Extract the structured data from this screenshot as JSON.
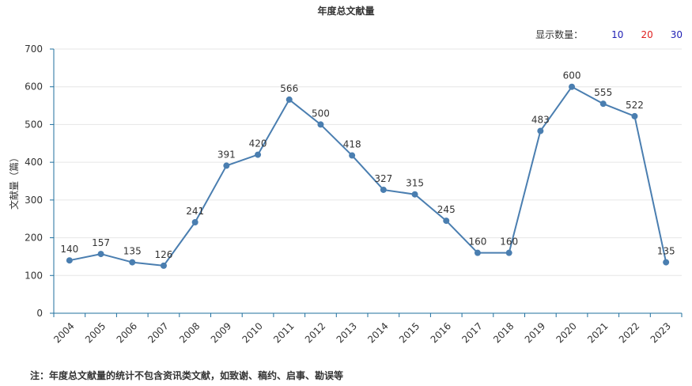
{
  "title": "年度总文献量",
  "display_count": {
    "label": "显示数量：",
    "options": [
      {
        "label": "10",
        "color": "#1f1fb4"
      },
      {
        "label": "20",
        "color": "#e02020"
      },
      {
        "label": "30",
        "color": "#1f1fb4"
      }
    ]
  },
  "note": "注：年度总文献量的统计不包含资讯类文献，如致谢、稿约、启事、勘误等",
  "colors": {
    "line": "#4a7eb0",
    "point": "#4a7eb0",
    "axis": "#1f6f9e",
    "grid": "#e6e6e6"
  },
  "chart_data": {
    "type": "line",
    "title": "年度总文献量",
    "xlabel": "",
    "ylabel": "文献量（篇）",
    "ylim": [
      0,
      700
    ],
    "yticks": [
      0,
      100,
      200,
      300,
      400,
      500,
      600,
      700
    ],
    "grid": true,
    "categories": [
      "2004",
      "2005",
      "2006",
      "2007",
      "2008",
      "2009",
      "2010",
      "2011",
      "2012",
      "2013",
      "2014",
      "2015",
      "2016",
      "2017",
      "2018",
      "2019",
      "2020",
      "2021",
      "2022",
      "2023"
    ],
    "series": [
      {
        "values": [
          140,
          157,
          135,
          126,
          241,
          391,
          420,
          566,
          500,
          418,
          327,
          315,
          245,
          160,
          160,
          483,
          600,
          555,
          522,
          135
        ]
      }
    ]
  }
}
